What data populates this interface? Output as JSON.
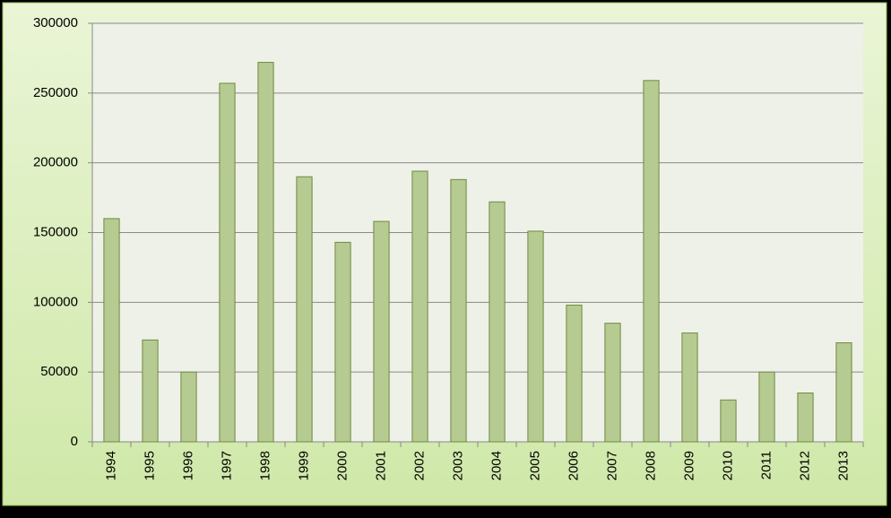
{
  "chart_data": {
    "type": "bar",
    "categories": [
      "1994",
      "1995",
      "1996",
      "1997",
      "1998",
      "1999",
      "2000",
      "2001",
      "2002",
      "2003",
      "2004",
      "2005",
      "2006",
      "2007",
      "2008",
      "2009",
      "2010",
      "2011",
      "2012",
      "2013"
    ],
    "values": [
      160000,
      73000,
      50000,
      257000,
      272000,
      190000,
      143000,
      158000,
      194000,
      188000,
      172000,
      151000,
      98000,
      85000,
      259000,
      78000,
      30000,
      50000,
      35000,
      71000
    ],
    "color": "#b5cb92",
    "ylim": [
      0,
      300000
    ],
    "yticks": [
      0,
      50000,
      100000,
      150000,
      200000,
      250000,
      300000
    ],
    "grid": true
  }
}
